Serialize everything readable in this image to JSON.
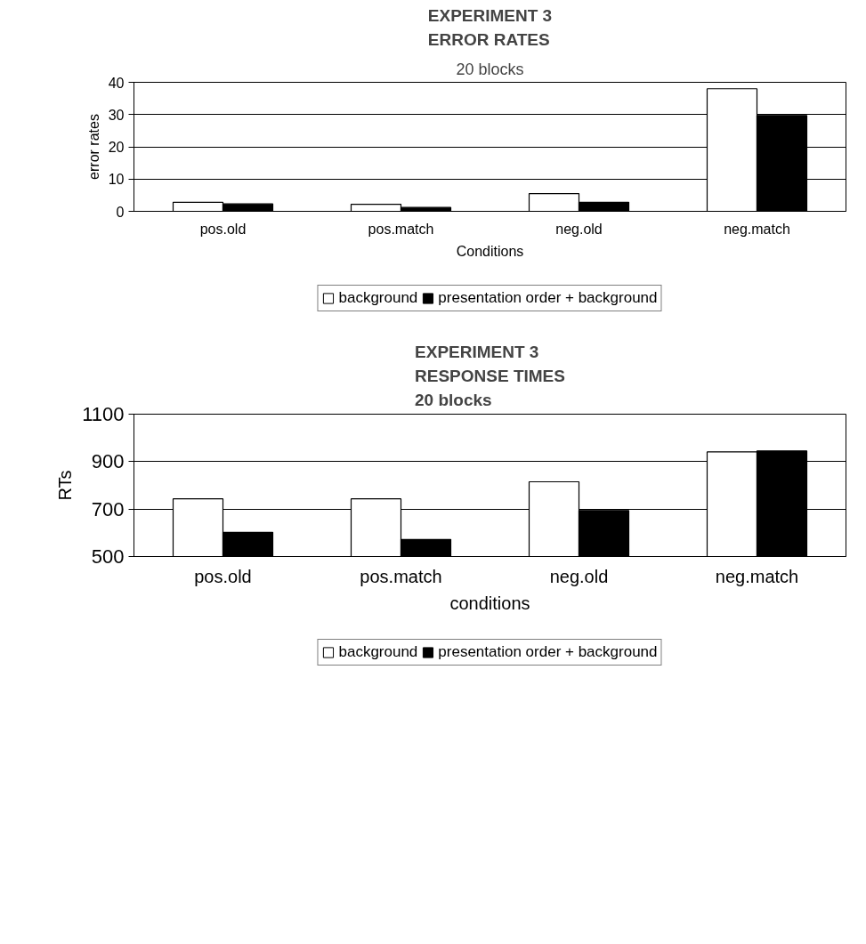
{
  "chart_data": [
    {
      "type": "bar",
      "title": "EXPERIMENT 3\nERROR RATES",
      "subtitle": "20 blocks",
      "xlabel": "Conditions",
      "ylabel": "error rates",
      "categories": [
        "pos.old",
        "pos.match",
        "neg.old",
        "neg.match"
      ],
      "series": [
        {
          "name": "background",
          "color": "#ffffff",
          "values": [
            2.8,
            2.2,
            5.5,
            38
          ]
        },
        {
          "name": "presentation order + background",
          "color": "#000000",
          "values": [
            2.3,
            1.2,
            2.8,
            29.7
          ]
        }
      ],
      "ylim": [
        0,
        40
      ],
      "yticks": [
        0,
        10,
        20,
        30,
        40
      ],
      "grid": "y",
      "legend": "bottom"
    },
    {
      "type": "bar",
      "title": "EXPERIMENT 3\nRESPONSE TIMES\n20 blocks",
      "xlabel": "conditions",
      "ylabel": "RTs",
      "categories": [
        "pos.old",
        "pos.match",
        "neg.old",
        "neg.match"
      ],
      "series": [
        {
          "name": "background",
          "color": "#ffffff",
          "values": [
            743,
            743,
            815,
            941
          ]
        },
        {
          "name": "presentation order + background",
          "color": "#000000",
          "values": [
            602,
            572,
            694,
            945
          ]
        }
      ],
      "ylim": [
        500,
        1100
      ],
      "yticks": [
        500,
        700,
        900,
        1100
      ],
      "grid": "y",
      "legend": "bottom"
    }
  ]
}
